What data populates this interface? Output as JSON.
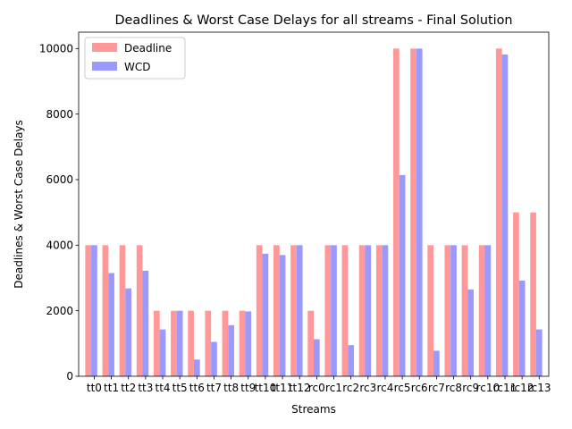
{
  "chart_data": {
    "type": "bar",
    "title": "Deadlines & Worst Case Delays for all streams - Final Solution",
    "xlabel": "Streams",
    "ylabel": "Deadlines & Worst Case Delays",
    "ylim": [
      0,
      10500
    ],
    "yticks": [
      0,
      2000,
      4000,
      6000,
      8000,
      10000
    ],
    "grid": false,
    "legend_placement": "upper-left",
    "categories": [
      "tt0",
      "tt1",
      "tt2",
      "tt3",
      "tt4",
      "tt5",
      "tt6",
      "tt7",
      "tt8",
      "tt9",
      "tt10",
      "tt11",
      "tt12",
      "rc0",
      "rc1",
      "rc2",
      "rc3",
      "rc4",
      "rc5",
      "rc6",
      "rc7",
      "rc8",
      "rc9",
      "rc10",
      "rc11",
      "rc12",
      "rc13"
    ],
    "series": [
      {
        "name": "Deadline",
        "color": "#ff9999",
        "values": [
          4000,
          4000,
          4000,
          4000,
          2000,
          2000,
          2000,
          2000,
          2000,
          2000,
          4000,
          4000,
          4000,
          2000,
          4000,
          4000,
          4000,
          4000,
          10000,
          10000,
          4000,
          4000,
          4000,
          4000,
          10000,
          5000,
          5000
        ]
      },
      {
        "name": "WCD",
        "color": "#9999ff",
        "values": [
          4000,
          3150,
          2680,
          3220,
          1430,
          2000,
          510,
          1050,
          1560,
          1980,
          3740,
          3700,
          4000,
          1130,
          4000,
          950,
          4000,
          4000,
          6140,
          10000,
          780,
          4000,
          2650,
          4000,
          9820,
          2920,
          1430
        ]
      }
    ]
  }
}
